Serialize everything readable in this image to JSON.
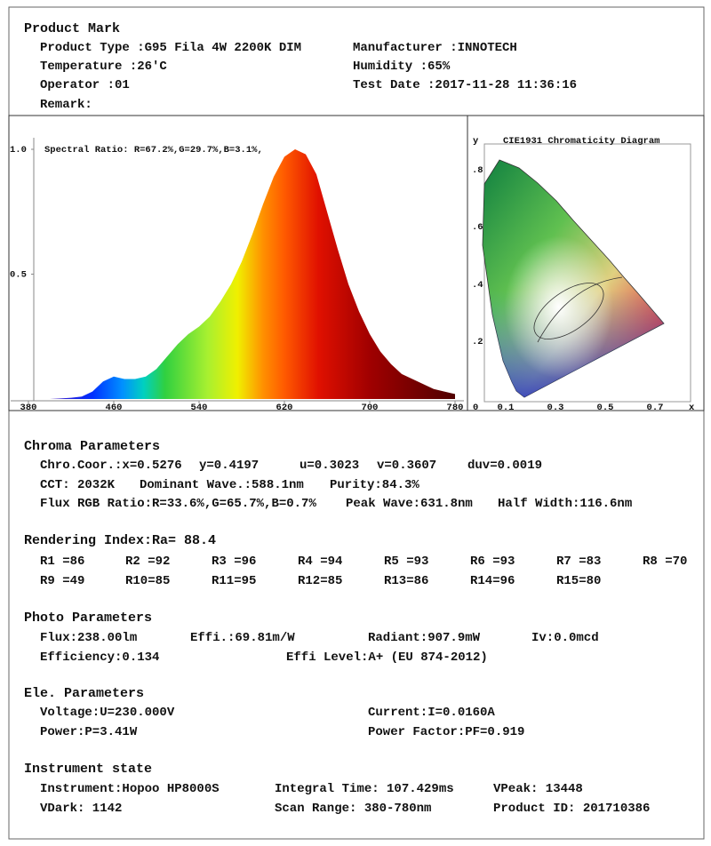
{
  "sections": [
    {
      "title": "Product Mark",
      "rows": [
        [
          "Product Type :G95 Fila 4W 2200K DIM",
          "Manufacturer :INNOTECH"
        ],
        [
          "Temperature :26'C",
          "Humidity :65%"
        ],
        [
          "Operator :01",
          "Test Date :2017-11-28 11:36:16"
        ],
        [
          "Remark:"
        ]
      ]
    },
    {
      "title": "Chroma Parameters",
      "rows": [
        [
          "Chro.Coor.:x=0.5276",
          "y=0.4197",
          "u=0.3023",
          "v=0.3607",
          "duv=0.0019"
        ],
        [
          "CCT: 2032K",
          "Dominant Wave.:588.1nm",
          "Purity:84.3%"
        ],
        [
          "Flux RGB Ratio:R=33.6%,G=65.7%,B=0.7%",
          "Peak Wave:631.8nm",
          "Half Width:116.6nm"
        ]
      ]
    },
    {
      "title": "Rendering Index:Ra= 88.4",
      "rows": [
        [
          "R1 =86",
          "R2 =92",
          "R3 =96",
          "R4 =94",
          "R5 =93",
          "R6 =93",
          "R7 =83",
          "R8 =70"
        ],
        [
          "R9 =49",
          "R10=85",
          "R11=95",
          "R12=85",
          "R13=86",
          "R14=96",
          "R15=80"
        ]
      ]
    },
    {
      "title": "Photo Parameters",
      "rows": [
        [
          "Flux:238.00lm",
          "Effi.:69.81m/W",
          "Radiant:907.9mW",
          "Iv:0.0mcd"
        ],
        [
          "Efficiency:0.134",
          "Effi Level:A+ (EU 874-2012)"
        ]
      ]
    },
    {
      "title": "Ele. Parameters",
      "rows": [
        [
          "Voltage:U=230.000V",
          "Current:I=0.0160A"
        ],
        [
          "Power:P=3.41W",
          "Power Factor:PF=0.919"
        ]
      ]
    },
    {
      "title": "Instrument state",
      "rows": [
        [
          "Instrument:Hopoo HP8000S",
          "Integral Time: 107.429ms",
          "VPeak: 13448"
        ],
        [
          "VDark: 1142",
          "Scan Range: 380-780nm",
          "Product ID: 201710386"
        ]
      ]
    }
  ],
  "chart_data": {
    "type": "area",
    "annotation": "Spectral Ratio:  R=67.2%,G=29.7%,B=3.1%,",
    "x": [
      380,
      390,
      400,
      410,
      420,
      430,
      440,
      450,
      460,
      470,
      480,
      490,
      500,
      510,
      520,
      530,
      540,
      550,
      560,
      570,
      580,
      590,
      600,
      610,
      620,
      630,
      640,
      650,
      660,
      670,
      680,
      690,
      700,
      710,
      720,
      730,
      740,
      750,
      760,
      770,
      780
    ],
    "values": [
      0,
      0,
      0,
      0.002,
      0.005,
      0.01,
      0.03,
      0.07,
      0.09,
      0.08,
      0.08,
      0.09,
      0.12,
      0.17,
      0.22,
      0.26,
      0.29,
      0.33,
      0.39,
      0.46,
      0.55,
      0.66,
      0.78,
      0.89,
      0.97,
      1.0,
      0.98,
      0.9,
      0.75,
      0.6,
      0.46,
      0.35,
      0.26,
      0.19,
      0.14,
      0.1,
      0.08,
      0.06,
      0.04,
      0.03,
      0.02
    ],
    "xlim": [
      380,
      780
    ],
    "ylim": [
      0,
      1
    ],
    "xticks": [
      380,
      460,
      540,
      620,
      700,
      780
    ],
    "yticks": [
      0.5,
      {
        "value": 1,
        "label": "1.0"
      }
    ]
  },
  "cie": {
    "title": "CIE1931 Chromaticity Diagram",
    "y_label": "y",
    "x_label": "x",
    "yticks": [
      ".8",
      ".6",
      ".4",
      ".2"
    ],
    "xticks": [
      "0",
      "0.1",
      "0.3",
      "0.5",
      "0.7"
    ]
  }
}
